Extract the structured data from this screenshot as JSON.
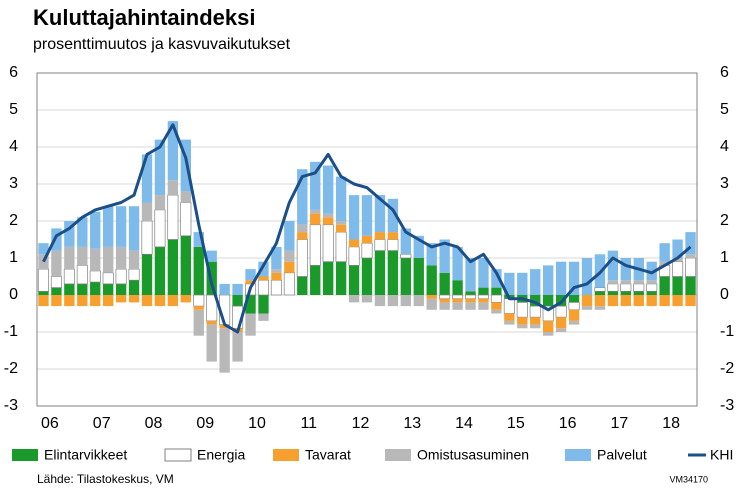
{
  "chart_data": {
    "type": "stacked-bar-line",
    "title": "Kuluttajahintaindeksi",
    "subtitle": "prosenttimuutos ja kasvuvaikutukset",
    "source": "Lähde: Tilastokeskus, VM",
    "code": "VM34170",
    "categories": [
      "06",
      null,
      null,
      null,
      "07",
      null,
      null,
      null,
      "08",
      null,
      null,
      null,
      "09",
      null,
      null,
      null,
      "10",
      null,
      null,
      null,
      "11",
      null,
      null,
      null,
      "12",
      null,
      null,
      null,
      "13",
      null,
      null,
      null,
      "14",
      null,
      null,
      null,
      "15",
      null,
      null,
      null,
      "16",
      null,
      null,
      null,
      "17",
      null,
      null,
      null,
      "18",
      null,
      null
    ],
    "ylim": [
      -3,
      6
    ],
    "yticks": [
      -3,
      -2,
      -1,
      0,
      1,
      2,
      3,
      4,
      5,
      6
    ],
    "grid": true,
    "legend": "bottom",
    "series": [
      {
        "name": "Elintarvikkeet",
        "color": "#1a9a2a",
        "values": [
          0.1,
          0.2,
          0.3,
          0.3,
          0.35,
          0.3,
          0.3,
          0.4,
          1.1,
          1.3,
          1.5,
          1.6,
          1.3,
          0.9,
          0.0,
          -0.3,
          -0.5,
          -0.5,
          0.0,
          0.0,
          0.5,
          0.8,
          0.9,
          0.9,
          0.8,
          1.0,
          1.2,
          1.2,
          1.0,
          1.0,
          0.8,
          0.6,
          0.4,
          0.1,
          0.2,
          0.2,
          -0.1,
          -0.2,
          -0.3,
          -0.3,
          -0.3,
          -0.2,
          0.0,
          0.1,
          0.1,
          0.1,
          0.1,
          0.1,
          0.5,
          0.5,
          0.5
        ]
      },
      {
        "name": "Energia",
        "color": "#ffffff",
        "values": [
          0.6,
          0.3,
          0.4,
          0.5,
          0.3,
          0.3,
          0.4,
          0.3,
          0.9,
          1.0,
          1.2,
          0.9,
          -0.3,
          -0.7,
          -0.8,
          -0.6,
          0.3,
          0.4,
          0.4,
          0.6,
          1.0,
          1.1,
          1.0,
          0.8,
          0.5,
          0.4,
          0.3,
          0.3,
          0.1,
          0.0,
          0.0,
          -0.1,
          -0.1,
          -0.1,
          -0.1,
          -0.2,
          -0.4,
          -0.4,
          -0.3,
          -0.4,
          -0.3,
          -0.2,
          0.0,
          0.1,
          0.2,
          0.2,
          0.2,
          0.2,
          0.3,
          0.4,
          0.5
        ]
      },
      {
        "name": "Tavarat",
        "color": "#f7a030",
        "values": [
          -0.3,
          -0.3,
          -0.3,
          -0.3,
          -0.3,
          -0.3,
          -0.2,
          -0.2,
          -0.3,
          -0.3,
          -0.3,
          -0.2,
          -0.1,
          -0.1,
          -0.1,
          -0.1,
          0.1,
          0.1,
          0.2,
          0.3,
          0.2,
          0.3,
          0.2,
          0.2,
          0.2,
          0.2,
          0.2,
          0.2,
          0.0,
          0.0,
          -0.1,
          -0.1,
          -0.1,
          -0.1,
          -0.1,
          -0.2,
          -0.2,
          -0.2,
          -0.2,
          -0.3,
          -0.3,
          -0.3,
          -0.3,
          -0.3,
          -0.3,
          -0.3,
          -0.3,
          -0.3,
          -0.3,
          -0.3,
          -0.3
        ]
      },
      {
        "name": "Omistusasuminen",
        "color": "#b8b8b8",
        "values": [
          0.4,
          0.7,
          0.6,
          0.5,
          0.6,
          0.7,
          0.6,
          0.5,
          0.5,
          0.4,
          0.4,
          0.3,
          -0.7,
          -1.0,
          -1.2,
          -0.8,
          -0.6,
          -0.2,
          0.1,
          0.3,
          0.2,
          0.1,
          0.1,
          0.1,
          -0.2,
          -0.2,
          -0.3,
          -0.3,
          -0.3,
          -0.3,
          -0.3,
          -0.2,
          -0.2,
          -0.2,
          -0.2,
          -0.1,
          -0.1,
          -0.1,
          -0.1,
          -0.1,
          -0.1,
          -0.1,
          -0.1,
          -0.1,
          0.1,
          0.1,
          0.1,
          0.1,
          0.1,
          0.1,
          0.1
        ]
      },
      {
        "name": "Palvelut",
        "color": "#7fbbea",
        "values": [
          0.3,
          0.6,
          0.7,
          0.8,
          1.0,
          1.1,
          1.1,
          1.2,
          1.3,
          1.5,
          1.6,
          1.4,
          0.4,
          0.3,
          0.3,
          0.3,
          0.3,
          0.4,
          0.6,
          0.8,
          1.5,
          1.3,
          1.3,
          1.2,
          1.2,
          1.1,
          1.0,
          0.9,
          0.7,
          0.6,
          0.6,
          0.9,
          0.9,
          0.9,
          0.8,
          0.5,
          0.6,
          0.6,
          0.7,
          0.8,
          0.9,
          0.9,
          1.0,
          0.9,
          0.8,
          0.6,
          0.6,
          0.5,
          0.5,
          0.5,
          0.6
        ]
      }
    ],
    "line": {
      "name": "KHI",
      "color": "#1b4f8a",
      "values": [
        0.9,
        1.6,
        1.8,
        2.1,
        2.3,
        2.4,
        2.5,
        2.7,
        3.8,
        4.0,
        4.6,
        3.7,
        1.9,
        0.3,
        -0.8,
        -1.0,
        0.2,
        0.8,
        1.4,
        2.5,
        3.2,
        3.3,
        3.8,
        3.2,
        3.0,
        2.9,
        2.6,
        2.3,
        1.7,
        1.5,
        1.3,
        1.4,
        1.3,
        0.9,
        1.1,
        0.6,
        -0.1,
        -0.1,
        -0.2,
        -0.4,
        -0.2,
        0.2,
        0.3,
        0.6,
        1.0,
        0.8,
        0.7,
        0.6,
        0.8,
        1.0,
        1.3
      ]
    }
  }
}
